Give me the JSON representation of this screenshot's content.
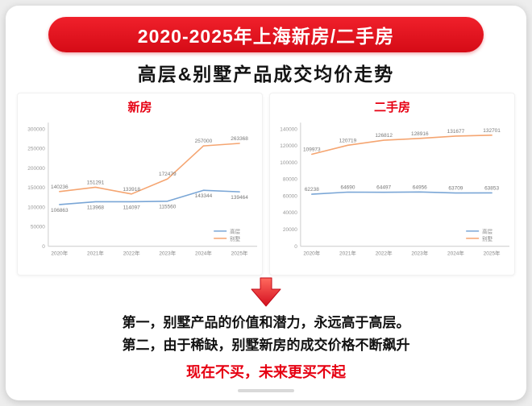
{
  "banner": {
    "title": "2020-2025年上海新房/二手房"
  },
  "subtitle": "高层&别墅产品成交均价走势",
  "colors": {
    "accent_red": "#e60012",
    "line_blue": "#7aa6d6",
    "line_orange": "#f5a571",
    "axis_gray": "#cccccc",
    "label_gray": "#777777"
  },
  "chart_data": [
    {
      "type": "line",
      "title": "新房",
      "categories": [
        "2020年",
        "2021年",
        "2022年",
        "2023年",
        "2024年",
        "2025年"
      ],
      "series": [
        {
          "name": "高层",
          "values": [
            106863,
            113968,
            114097,
            115560,
            143344,
            139464
          ],
          "color": "#7aa6d6",
          "label_position": "below"
        },
        {
          "name": "别墅",
          "values": [
            140236,
            151291,
            133918,
            172479,
            257000,
            263368
          ],
          "color": "#f5a571",
          "label_position": "above"
        }
      ],
      "xlabel": "",
      "ylabel": "",
      "ylim": [
        0,
        300000
      ],
      "yticks": [
        0,
        50000,
        100000,
        150000,
        200000,
        250000,
        300000
      ],
      "grid": false,
      "legend_position": "bottom-right"
    },
    {
      "type": "line",
      "title": "二手房",
      "categories": [
        "2020年",
        "2021年",
        "2022年",
        "2023年",
        "2024年",
        "2025年"
      ],
      "series": [
        {
          "name": "高层",
          "values": [
            62238,
            64690,
            64497,
            64956,
            63709,
            63853
          ],
          "color": "#7aa6d6",
          "label_position": "above"
        },
        {
          "name": "别墅",
          "values": [
            109973,
            120719,
            126812,
            128916,
            131677,
            132701
          ],
          "color": "#f5a571",
          "label_position": "above"
        }
      ],
      "xlabel": "",
      "ylabel": "",
      "ylim": [
        0,
        140000
      ],
      "yticks": [
        0,
        20000,
        40000,
        60000,
        80000,
        100000,
        120000,
        140000
      ],
      "grid": false,
      "legend_position": "bottom-right"
    }
  ],
  "footer": {
    "line1": "第一，别墅产品的价值和潜力，永远高于高层。",
    "line2": "第二，由于稀缺，别墅新房的成交价格不断飙升",
    "line3": "现在不买，未来更买不起"
  }
}
